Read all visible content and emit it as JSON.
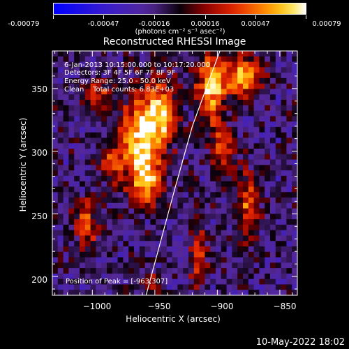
{
  "colorbar": {
    "ticks": [
      "-0.00079",
      "-0.00047",
      "-0.00016",
      "0.00016",
      "0.00047",
      "0.00079"
    ],
    "unit": "(photons cm⁻² s⁻¹ asec⁻²)",
    "min": -0.00079,
    "max": 0.00079
  },
  "chart_data": {
    "type": "heatmap",
    "title": "Reconstructed RHESSI Image",
    "xlabel": "Heliocentric X (arcsec)",
    "ylabel": "Heliocentric Y (arcsec)",
    "xlim": [
      -1032,
      -836
    ],
    "ylim": [
      185,
      380
    ],
    "xticks": [
      -1000,
      -950,
      -900,
      -850
    ],
    "yticks": [
      200,
      250,
      300,
      350
    ],
    "xtick_labels": [
      "−1000",
      "−950",
      "−900",
      "−850"
    ],
    "ytick_labels": [
      "200",
      "250",
      "300",
      "350"
    ],
    "limb_line": [
      [
        -957,
        185
      ],
      [
        -934,
        270
      ],
      [
        -920,
        320
      ],
      [
        -898,
        380
      ]
    ],
    "peak_position": [
      -963,
      307
    ],
    "annotations": {
      "time": "6-Jan-2013 10:15:00.000 to 10:17:20.000",
      "detectors": "Detectors: 3F 4F 5F 6F 7F 8F 9F",
      "energy": "Energy Range: 25.0 - 50.0 keV",
      "clean": "Clean    Total counts: 6.83E+03",
      "peak": "Position of Peak = [-963,307]"
    }
  },
  "footer": {
    "date": "10-May-2022 18:02"
  }
}
